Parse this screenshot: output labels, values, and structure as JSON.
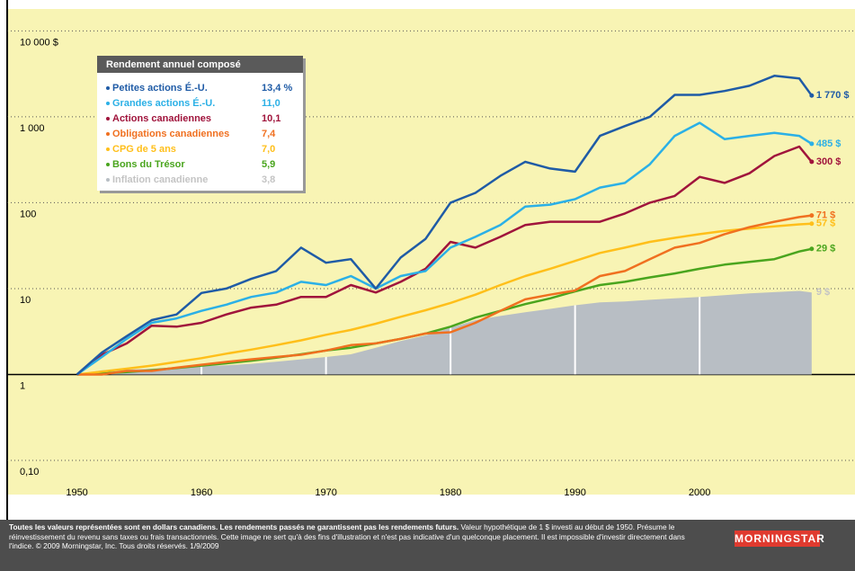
{
  "chart_data": {
    "type": "line",
    "log_scale": true,
    "grid": true,
    "baseline": 1,
    "xlim": [
      1944.4,
      2011.9
    ],
    "ylim": [
      0.04,
      18000
    ],
    "xticks": [
      1950,
      1960,
      1970,
      1980,
      1990,
      2000
    ],
    "yticks": [
      {
        "value": 0.1,
        "label": "0,10"
      },
      1,
      10,
      100,
      {
        "value": 1000,
        "label": "1 000"
      },
      {
        "value": 10000,
        "label": "10 000 $"
      }
    ],
    "legend": {
      "title": "Rendement annuel composé",
      "corner": "top-left"
    },
    "x": [
      1950,
      1952,
      1954,
      1956,
      1958,
      1960,
      1962,
      1964,
      1966,
      1968,
      1970,
      1972,
      1974,
      1976,
      1978,
      1980,
      1982,
      1984,
      1986,
      1988,
      1990,
      1992,
      1994,
      1996,
      1998,
      2000,
      2002,
      2004,
      2006,
      2008,
      2009
    ],
    "series": [
      {
        "name": "Petites actions É.-U.",
        "color": "#1f5ba6",
        "rate": 13.4,
        "rate_label": "13,4 %",
        "end_label": "1 770 $",
        "values": [
          1,
          1.8,
          2.8,
          4.3,
          5,
          8.9,
          10,
          13,
          16,
          30,
          20,
          22,
          10,
          23,
          38,
          100,
          130,
          205,
          300,
          250,
          230,
          600,
          780,
          1000,
          1800,
          1800,
          2000,
          2300,
          3000,
          2800,
          1770
        ]
      },
      {
        "name": "Grandes actions É.-U.",
        "color": "#2bb0e6",
        "rate": 11.0,
        "rate_label": "11,0",
        "end_label": "485 $",
        "values": [
          1,
          1.6,
          2.6,
          4,
          4.5,
          5.5,
          6.5,
          8,
          9,
          12,
          11,
          14,
          10,
          14,
          16,
          30,
          40,
          55,
          90,
          95,
          110,
          150,
          170,
          280,
          600,
          850,
          550,
          600,
          650,
          600,
          485
        ]
      },
      {
        "name": "Actions canadiennes",
        "color": "#a0143c",
        "rate": 10.1,
        "rate_label": "10,1",
        "end_label": "300 $",
        "values": [
          1,
          1.7,
          2.3,
          3.7,
          3.6,
          4,
          5,
          6,
          6.5,
          8,
          8,
          11,
          9,
          12,
          17,
          35,
          30,
          40,
          55,
          60,
          60,
          60,
          75,
          100,
          120,
          200,
          170,
          220,
          350,
          450,
          300
        ]
      },
      {
        "name": "Obligations canadiennes",
        "color": "#f07020",
        "rate": 7.4,
        "rate_label": "7,4",
        "end_label": "71 $",
        "values": [
          1,
          1,
          1.1,
          1.1,
          1.2,
          1.3,
          1.4,
          1.5,
          1.6,
          1.7,
          1.9,
          2.2,
          2.3,
          2.6,
          3,
          3.1,
          4,
          5.5,
          7.5,
          8.5,
          9.5,
          14,
          16,
          22,
          30,
          34,
          43,
          52,
          60,
          68,
          71
        ]
      },
      {
        "name": "CPG de 5 ans",
        "color": "#ffbf1a",
        "rate": 7.0,
        "rate_label": "7,0",
        "end_label": "57 $",
        "values": [
          1,
          1.08,
          1.17,
          1.27,
          1.4,
          1.55,
          1.75,
          1.95,
          2.2,
          2.5,
          2.9,
          3.3,
          3.9,
          4.7,
          5.6,
          6.8,
          8.5,
          11,
          14,
          17,
          21,
          26,
          30,
          35,
          39,
          43,
          47,
          50,
          53,
          56,
          57
        ]
      },
      {
        "name": "Bons du Trésor",
        "color": "#4aa51e",
        "rate": 5.9,
        "rate_label": "5,9",
        "end_label": "29 $",
        "values": [
          1,
          1.03,
          1.07,
          1.12,
          1.19,
          1.27,
          1.35,
          1.45,
          1.57,
          1.72,
          1.9,
          2.05,
          2.3,
          2.6,
          3,
          3.6,
          4.6,
          5.5,
          6.6,
          7.7,
          9.3,
          11,
          12,
          13.5,
          15,
          17,
          19,
          20.5,
          22,
          27,
          29
        ]
      },
      {
        "name": "Inflation canadienne",
        "color": "#b8bec4",
        "text_color": "#c4c4c4",
        "fill": "area",
        "rate": 3.8,
        "rate_label": "3,8",
        "end_label": "9 $",
        "values": [
          1,
          1.12,
          1.14,
          1.17,
          1.22,
          1.25,
          1.28,
          1.33,
          1.41,
          1.5,
          1.6,
          1.72,
          2.05,
          2.45,
          2.85,
          3.5,
          4.3,
          4.8,
          5.3,
          5.8,
          6.4,
          6.9,
          7.1,
          7.4,
          7.7,
          8,
          8.4,
          8.8,
          9.1,
          9.4,
          9
        ]
      }
    ]
  },
  "footer": {
    "bold": "Toutes les valeurs représentées sont en dollars canadiens. Les rendements passés ne garantissent pas les rendements futurs.",
    "text": "Valeur hypothétique de 1 $ investi au début de 1950. Présume le réinvestissement du revenu sans taxes ou frais transactionnels. Cette image ne sert qu'à des fins d'illustration et n'est pas indicative d'un quelconque placement. Il est impossible d'investir directement dans l'indice. © 2009 Morningstar, Inc. Tous droits réservés. 1/9/2009",
    "logo": "MORNINGSTAR"
  }
}
